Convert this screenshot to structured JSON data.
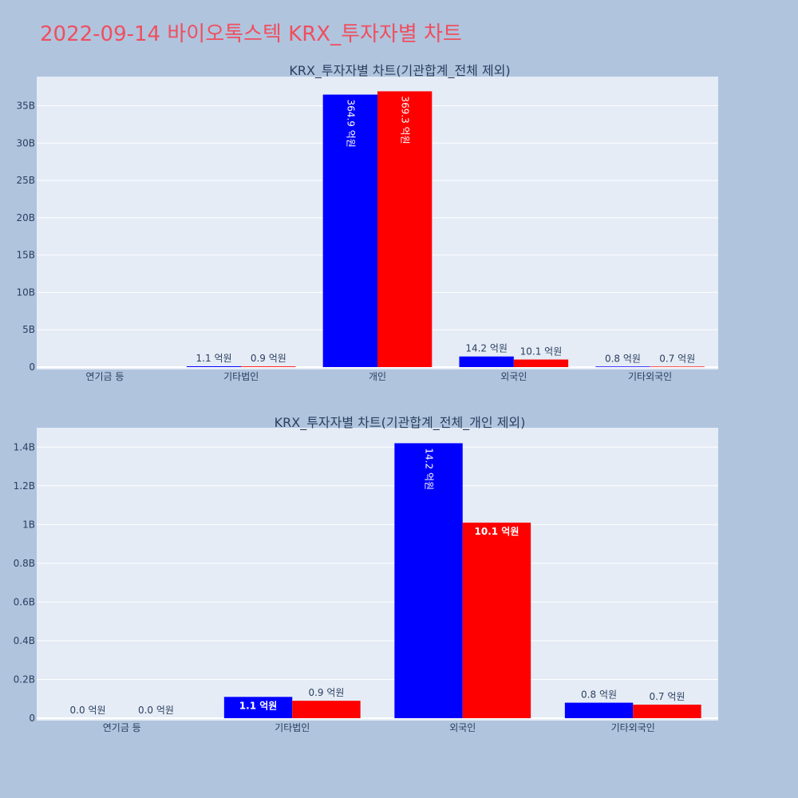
{
  "page_title": "2022-09-14 바이오톡스텍 KRX_투자자별 차트",
  "colors": {
    "background": "#b0c4de",
    "plot_bg": "#e5ecf6",
    "title": "#ef4f5f",
    "series_a": "#0000ff",
    "series_b": "#ff0000"
  },
  "chart_data": [
    {
      "type": "bar",
      "title": "KRX_투자자별 차트(기관합계_전체 제외)",
      "categories": [
        "연기금 등",
        "기타법인",
        "개인",
        "외국인",
        "기타외국인"
      ],
      "series": [
        {
          "values": [
            0,
            110000000,
            36490000000,
            1420000000,
            80000000
          ],
          "labels": [
            "",
            "1.1 억원",
            "364.9 억원",
            "14.2 억원",
            "0.8 억원"
          ]
        },
        {
          "values": [
            0,
            90000000,
            36930000000,
            1010000000,
            70000000
          ],
          "labels": [
            "",
            "0.9 억원",
            "369.3 억원",
            "10.1 억원",
            "0.7 억원"
          ]
        }
      ],
      "yticks": [
        "0",
        "5B",
        "10B",
        "15B",
        "20B",
        "25B",
        "30B",
        "35B"
      ],
      "ytick_values": [
        0,
        5000000000,
        10000000000,
        15000000000,
        20000000000,
        25000000000,
        30000000000,
        35000000000
      ],
      "ylim": [
        0,
        38900000000
      ],
      "grid": true,
      "xlabel": "",
      "ylabel": ""
    },
    {
      "type": "bar",
      "title": "KRX_투자자별 차트(기관합계_전체_개인 제외)",
      "categories": [
        "연기금 등",
        "기타법인",
        "외국인",
        "기타외국인"
      ],
      "series": [
        {
          "values": [
            0,
            110000000,
            1420000000,
            80000000
          ],
          "labels": [
            "0.0 억원",
            "1.1 억원",
            "14.2 억원",
            "0.8 억원"
          ]
        },
        {
          "values": [
            0,
            90000000,
            1010000000,
            70000000
          ],
          "labels": [
            "0.0 억원",
            "0.9 억원",
            "10.1 억원",
            "0.7 억원"
          ]
        }
      ],
      "yticks": [
        "0",
        "0.2B",
        "0.4B",
        "0.6B",
        "0.8B",
        "1B",
        "1.2B",
        "1.4B"
      ],
      "ytick_values": [
        0,
        200000000,
        400000000,
        600000000,
        800000000,
        1000000000,
        1200000000,
        1400000000
      ],
      "ylim": [
        0,
        1500000000
      ],
      "grid": true,
      "xlabel": "",
      "ylabel": ""
    }
  ]
}
